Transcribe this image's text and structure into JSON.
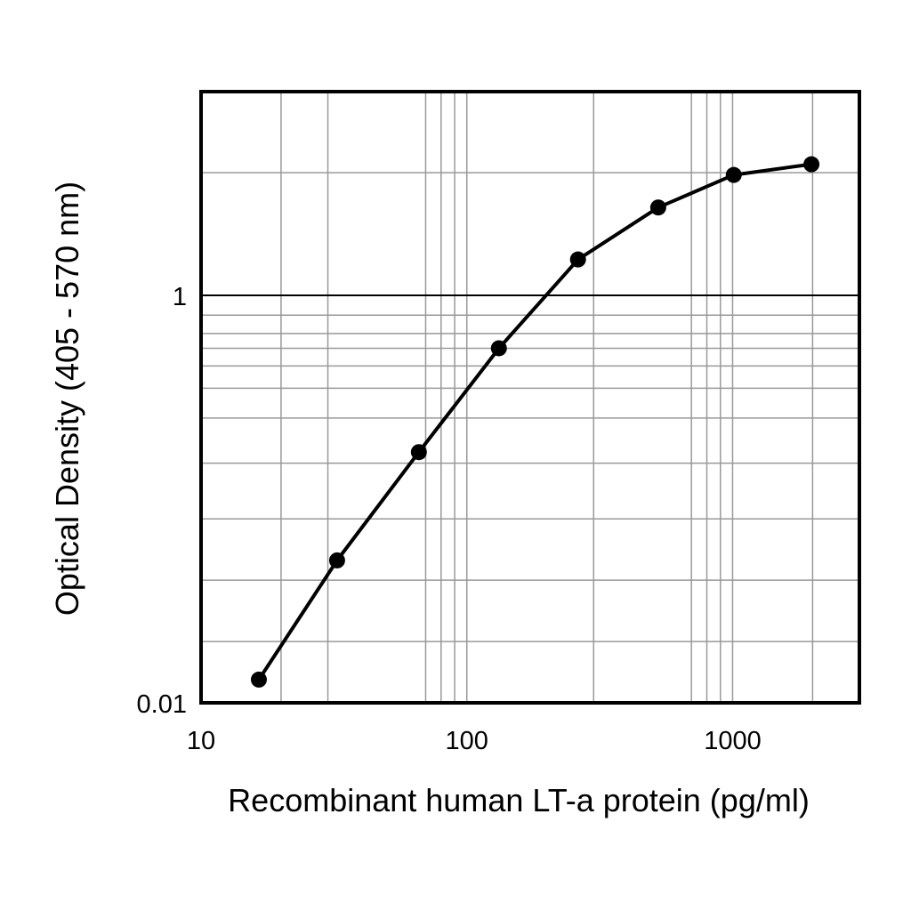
{
  "chart_data": {
    "type": "line",
    "xlabel": "Recombinant human LT-a protein (pg/ml)",
    "ylabel": "Optical Density (405 - 570 nm)",
    "x_scale": "log",
    "y_scale": "log",
    "xlim": [
      10,
      3000
    ],
    "ylim": [
      0.01,
      10
    ],
    "x_ticks": [
      {
        "value": 10,
        "label": "10"
      },
      {
        "value": 100,
        "label": "100"
      },
      {
        "value": 1000,
        "label": "1000"
      }
    ],
    "y_ticks": [
      {
        "value": 0.01,
        "label": "0.01"
      },
      {
        "value": 1,
        "label": "1"
      }
    ],
    "x_minor_gridlines": [
      20,
      30,
      70,
      80,
      90,
      300,
      700,
      800,
      900,
      2000
    ],
    "y_minor_gridlines": [
      0.02,
      0.04,
      0.08,
      0.15,
      0.25,
      0.35,
      0.45,
      0.55,
      0.65,
      0.8,
      4
    ],
    "grid": true,
    "series": [
      {
        "x": [
          16.5,
          32.5,
          66,
          132,
          262,
          525,
          1010,
          1980
        ],
        "y": [
          0.013,
          0.05,
          0.17,
          0.55,
          1.5,
          2.7,
          3.9,
          4.4
        ]
      }
    ]
  },
  "colors": {
    "line": "#000000",
    "grid": "#999999",
    "frame": "#000000"
  }
}
